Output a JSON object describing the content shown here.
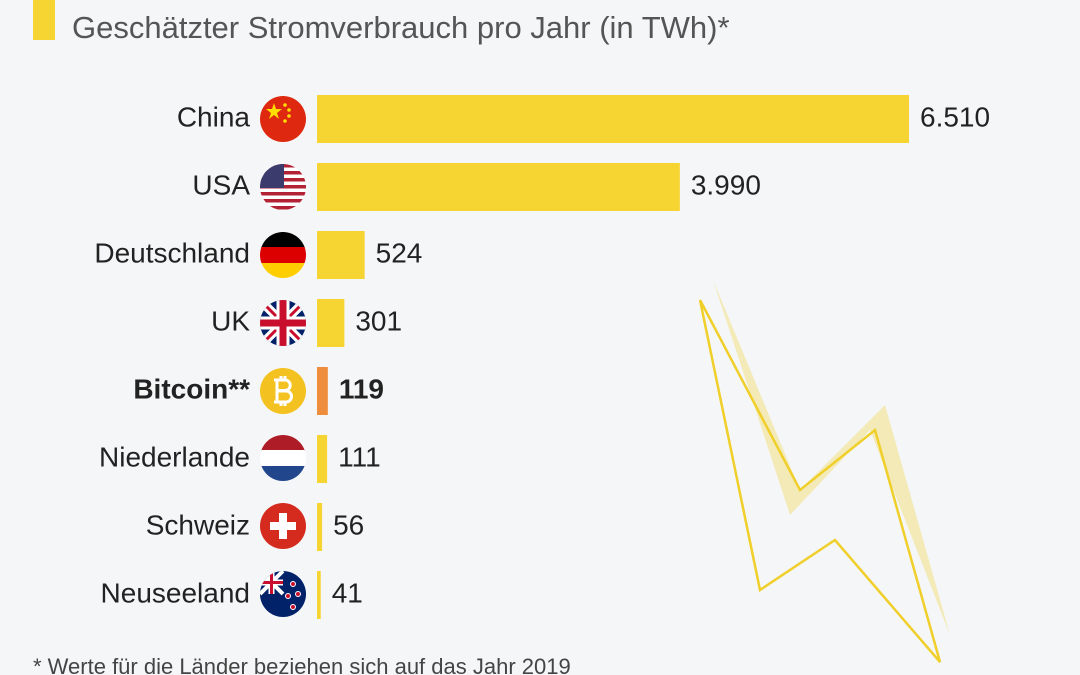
{
  "chart_data": {
    "type": "bar",
    "orientation": "horizontal",
    "title": "Geschätzter Stromverbrauch pro Jahr (in TWh)*",
    "categories": [
      "China",
      "USA",
      "Deutschland",
      "UK",
      "Bitcoin**",
      "Niederlande",
      "Schweiz",
      "Neuseeland"
    ],
    "values": [
      6510,
      3990,
      524,
      301,
      119,
      111,
      56,
      41
    ],
    "value_labels": [
      "6.510",
      "3.990",
      "524",
      "301",
      "119",
      "111",
      "56",
      "41"
    ],
    "colors": [
      "#f6d431",
      "#f6d431",
      "#f6d431",
      "#f6d431",
      "#ee8d3c",
      "#f6d431",
      "#f6d431",
      "#f6d431"
    ],
    "highlight": "Bitcoin**",
    "footnote": "*   Werte für die Länder beziehen sich auf das Jahr 2019"
  }
}
